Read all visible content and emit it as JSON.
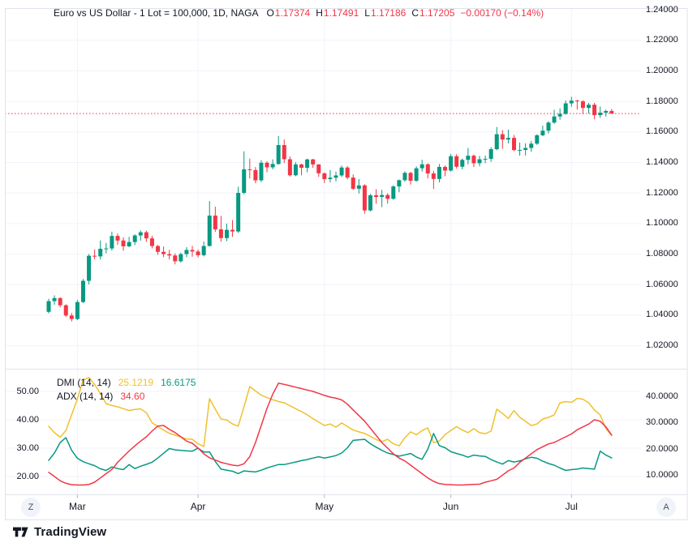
{
  "header": {
    "title": "Euro vs US Dollar - 1 Lot = 100,000, 1D, NAGA",
    "ohlc": {
      "o_label": "O",
      "o": "1.17374",
      "h_label": "H",
      "h": "1.17491",
      "l_label": "L",
      "l": "1.17186",
      "c_label": "C",
      "c": "1.17205",
      "change": "−0.00170 (−0.14%)"
    }
  },
  "indicator": {
    "dmi_label": "DMI (14, 14)",
    "plus_di_value": "25.1219",
    "minus_di_value": "16.6175",
    "adx_label": "ADX (14, 14)",
    "adx_value": "34.60"
  },
  "toolbar": {
    "z_label": "Z",
    "a_label": "A"
  },
  "footer": {
    "brand": "TradingView"
  },
  "colors": {
    "up": "#089981",
    "down": "#F23645",
    "plus_di": "#EFC12F",
    "minus_di": "#089981",
    "adx": "#F23645",
    "grid": "#F0F3FA",
    "border": "#E0E3EB",
    "text": "#131722",
    "muted": "#50535E",
    "last_price_line": "#F23645",
    "button_bg": "#F0F3FA"
  },
  "chart_data": [
    {
      "type": "candlestick",
      "title": "Euro vs US Dollar - 1 Lot = 100,000, 1D, NAGA",
      "timeframe": "1D",
      "broker": "NAGA",
      "ylim": [
        1.02,
        1.24
      ],
      "y_ticks": [
        1.24,
        1.22,
        1.2,
        1.18,
        1.16,
        1.14,
        1.12,
        1.1,
        1.08,
        1.06,
        1.04,
        1.02
      ],
      "y_tick_labels": [
        "1.24000",
        "1.22000",
        "1.20000",
        "1.18000",
        "1.16000",
        "1.14000",
        "1.12000",
        "1.10000",
        "1.08000",
        "1.06000",
        "1.04000",
        "1.02000"
      ],
      "x_ticks": [
        "Mar",
        "Apr",
        "May",
        "Jun",
        "Jul"
      ],
      "x_tick_indices": [
        5,
        26,
        48,
        70,
        91
      ],
      "last_price_line": 1.17205,
      "current": {
        "open": 1.17374,
        "high": 1.17491,
        "low": 1.17186,
        "close": 1.17205,
        "change": -0.0017,
        "change_pct": -0.14
      },
      "candles": [
        [
          1.0422,
          1.0508,
          1.0412,
          1.0492
        ],
        [
          1.0492,
          1.053,
          1.0468,
          1.0512
        ],
        [
          1.0512,
          1.0518,
          1.0452,
          1.0465
        ],
        [
          1.0465,
          1.0472,
          1.0388,
          1.0398
        ],
        [
          1.0398,
          1.0415,
          1.0359,
          1.0375
        ],
        [
          1.0375,
          1.05,
          1.0368,
          1.0486
        ],
        [
          1.0486,
          1.0637,
          1.048,
          1.0625
        ],
        [
          1.0625,
          1.08,
          1.0602,
          1.0789
        ],
        [
          1.0789,
          1.083,
          1.0766,
          1.0785
        ],
        [
          1.0785,
          1.0889,
          1.0765,
          1.0835
        ],
        [
          1.0835,
          1.0873,
          1.0805,
          1.0837
        ],
        [
          1.0837,
          1.0947,
          1.0823,
          1.0919
        ],
        [
          1.0919,
          1.0935,
          1.086,
          1.0889
        ],
        [
          1.0889,
          1.091,
          1.0822,
          1.0851
        ],
        [
          1.0851,
          1.0913,
          1.0845,
          1.0879
        ],
        [
          1.0879,
          1.093,
          1.0859,
          1.0922
        ],
        [
          1.0922,
          1.0955,
          1.0888,
          1.0943
        ],
        [
          1.0943,
          1.0954,
          1.088,
          1.0903
        ],
        [
          1.0903,
          1.092,
          1.0838,
          1.0853
        ],
        [
          1.0853,
          1.086,
          1.0796,
          1.0815
        ],
        [
          1.0815,
          1.085,
          1.078,
          1.08
        ],
        [
          1.08,
          1.0828,
          1.0765,
          1.0791
        ],
        [
          1.0791,
          1.0805,
          1.0733,
          1.0753
        ],
        [
          1.0753,
          1.081,
          1.0745,
          1.08
        ],
        [
          1.08,
          1.0845,
          1.078,
          1.0827
        ],
        [
          1.0827,
          1.0855,
          1.0783,
          1.0817
        ],
        [
          1.0817,
          1.083,
          1.0778,
          1.0793
        ],
        [
          1.0793,
          1.0882,
          1.0785,
          1.0853
        ],
        [
          1.0853,
          1.1147,
          1.085,
          1.1052
        ],
        [
          1.1052,
          1.111,
          1.0945,
          1.0962
        ],
        [
          1.0962,
          1.105,
          1.0882,
          1.0905
        ],
        [
          1.0905,
          1.1,
          1.0885,
          1.0959
        ],
        [
          1.0959,
          1.1023,
          1.0913,
          1.0948
        ],
        [
          1.0948,
          1.1241,
          1.0938,
          1.1201
        ],
        [
          1.1201,
          1.1473,
          1.1192,
          1.1355
        ],
        [
          1.1355,
          1.1425,
          1.1295,
          1.135
        ],
        [
          1.135,
          1.137,
          1.1264,
          1.1283
        ],
        [
          1.1283,
          1.1415,
          1.1272,
          1.1398
        ],
        [
          1.1398,
          1.1408,
          1.1336,
          1.1368
        ],
        [
          1.1368,
          1.142,
          1.1355,
          1.139
        ],
        [
          1.139,
          1.1573,
          1.1385,
          1.1514
        ],
        [
          1.1514,
          1.155,
          1.1396,
          1.1421
        ],
        [
          1.1421,
          1.1439,
          1.1308,
          1.1316
        ],
        [
          1.1316,
          1.1402,
          1.131,
          1.1387
        ],
        [
          1.1387,
          1.1392,
          1.1316,
          1.1365
        ],
        [
          1.1365,
          1.1425,
          1.1336,
          1.142
        ],
        [
          1.142,
          1.1424,
          1.1365,
          1.1387
        ],
        [
          1.1387,
          1.139,
          1.1306,
          1.1329
        ],
        [
          1.1329,
          1.1335,
          1.1265,
          1.1291
        ],
        [
          1.1291,
          1.135,
          1.127,
          1.13
        ],
        [
          1.13,
          1.134,
          1.1276,
          1.1315
        ],
        [
          1.1315,
          1.138,
          1.1305,
          1.1367
        ],
        [
          1.1367,
          1.1376,
          1.129,
          1.1301
        ],
        [
          1.1301,
          1.1322,
          1.122,
          1.1228
        ],
        [
          1.1228,
          1.1292,
          1.1197,
          1.125
        ],
        [
          1.125,
          1.1258,
          1.1065,
          1.1086
        ],
        [
          1.1086,
          1.1195,
          1.108,
          1.1185
        ],
        [
          1.1185,
          1.1225,
          1.113,
          1.1174
        ],
        [
          1.1174,
          1.1221,
          1.1108,
          1.1187
        ],
        [
          1.1187,
          1.1199,
          1.113,
          1.1162
        ],
        [
          1.1162,
          1.125,
          1.1156,
          1.1243
        ],
        [
          1.1243,
          1.1288,
          1.1205,
          1.1284
        ],
        [
          1.1284,
          1.1342,
          1.1274,
          1.1332
        ],
        [
          1.1332,
          1.1338,
          1.1255,
          1.128
        ],
        [
          1.128,
          1.1375,
          1.1274,
          1.1362
        ],
        [
          1.1362,
          1.1418,
          1.134,
          1.1388
        ],
        [
          1.1388,
          1.1395,
          1.1296,
          1.1328
        ],
        [
          1.1328,
          1.1345,
          1.1227,
          1.1292
        ],
        [
          1.1292,
          1.139,
          1.127,
          1.1371
        ],
        [
          1.1371,
          1.138,
          1.131,
          1.1347
        ],
        [
          1.1347,
          1.1455,
          1.134,
          1.1441
        ],
        [
          1.1441,
          1.1454,
          1.136,
          1.1372
        ],
        [
          1.1372,
          1.1426,
          1.1355,
          1.1417
        ],
        [
          1.1417,
          1.1495,
          1.1388,
          1.1444
        ],
        [
          1.1444,
          1.1452,
          1.137,
          1.1395
        ],
        [
          1.1395,
          1.1443,
          1.1375,
          1.1421
        ],
        [
          1.1421,
          1.1445,
          1.1395,
          1.1424
        ],
        [
          1.1424,
          1.15,
          1.1405,
          1.1487
        ],
        [
          1.1487,
          1.1632,
          1.148,
          1.1585
        ],
        [
          1.1585,
          1.1612,
          1.149,
          1.155
        ],
        [
          1.155,
          1.1615,
          1.1525,
          1.1561
        ],
        [
          1.1561,
          1.158,
          1.1473,
          1.1481
        ],
        [
          1.1481,
          1.153,
          1.1445,
          1.1482
        ],
        [
          1.1482,
          1.1525,
          1.1446,
          1.1495
        ],
        [
          1.1495,
          1.154,
          1.147,
          1.1523
        ],
        [
          1.1523,
          1.1585,
          1.1515,
          1.1578
        ],
        [
          1.1578,
          1.1641,
          1.1572,
          1.1608
        ],
        [
          1.1608,
          1.167,
          1.159,
          1.1661
        ],
        [
          1.1661,
          1.1745,
          1.1653,
          1.1701
        ],
        [
          1.1701,
          1.1754,
          1.168,
          1.1718
        ],
        [
          1.1718,
          1.1806,
          1.1713,
          1.1787
        ],
        [
          1.1787,
          1.183,
          1.1765,
          1.1805
        ],
        [
          1.1805,
          1.181,
          1.1746,
          1.18
        ],
        [
          1.18,
          1.1808,
          1.1716,
          1.1757
        ],
        [
          1.1757,
          1.179,
          1.172,
          1.1778
        ],
        [
          1.1778,
          1.179,
          1.1682,
          1.171
        ],
        [
          1.171,
          1.1766,
          1.1692,
          1.1726
        ],
        [
          1.1726,
          1.1745,
          1.17,
          1.1737
        ],
        [
          1.17374,
          1.17491,
          1.17186,
          1.17205
        ]
      ]
    },
    {
      "type": "line",
      "title": "DMI (14, 14) with ADX (14, 14)",
      "left_ticks": [
        50,
        40,
        30,
        20
      ],
      "left_tick_labels": [
        "50.00",
        "40.00",
        "30.00",
        "20.00"
      ],
      "right_ticks": [
        40,
        30,
        20,
        10
      ],
      "right_tick_labels": [
        "40.0000",
        "30.0000",
        "20.0000",
        "10.0000"
      ],
      "series": [
        {
          "name": "+DI",
          "scale": "right",
          "last_value": 25.1219,
          "values": [
            28.6,
            26.2,
            24.5,
            27.0,
            33.0,
            39.0,
            46.2,
            47.1,
            44.5,
            41.0,
            37.2,
            36.5,
            36.0,
            35.3,
            34.6,
            35.0,
            35.2,
            33.8,
            30.0,
            28.5,
            27.2,
            25.9,
            25.3,
            24.6,
            23.8,
            23.7,
            22.0,
            21.0,
            39.1,
            35.1,
            31.4,
            31.0,
            29.5,
            28.7,
            36.0,
            43.7,
            42.0,
            40.4,
            39.5,
            38.7,
            38.0,
            37.5,
            36.4,
            35.3,
            34.2,
            33.0,
            31.5,
            30.2,
            28.9,
            29.5,
            28.3,
            29.9,
            28.5,
            27.2,
            26.5,
            25.9,
            24.8,
            23.6,
            22.8,
            23.7,
            22.0,
            21.2,
            24.3,
            26.5,
            25.4,
            27.0,
            28.0,
            22.4,
            23.0,
            25.5,
            27.0,
            28.5,
            27.2,
            26.2,
            27.7,
            26.2,
            25.8,
            26.8,
            35.1,
            33.5,
            31.6,
            34.6,
            32.0,
            30.5,
            28.9,
            29.5,
            31.4,
            32.0,
            32.9,
            37.5,
            38.0,
            37.7,
            39.2,
            38.9,
            37.5,
            34.8,
            32.9,
            27.7,
            25.12
          ]
        },
        {
          "name": "-DI",
          "scale": "right",
          "last_value": 16.6175,
          "values": [
            15.7,
            18.5,
            22.5,
            24.3,
            19.5,
            16.5,
            15.2,
            14.4,
            13.7,
            12.5,
            11.9,
            13.2,
            12.6,
            12.2,
            14.1,
            12.6,
            13.5,
            14.2,
            15.0,
            16.6,
            18.4,
            20.2,
            19.7,
            19.5,
            19.3,
            19.2,
            20.3,
            18.9,
            18.9,
            15.3,
            12.4,
            12.0,
            11.6,
            10.7,
            11.7,
            11.5,
            11.3,
            12.0,
            12.8,
            13.5,
            14.1,
            14.1,
            14.6,
            15.1,
            15.6,
            16.0,
            16.6,
            17.1,
            16.6,
            17.0,
            17.5,
            18.5,
            20.5,
            23.3,
            23.5,
            23.7,
            22.0,
            20.7,
            19.5,
            18.5,
            17.9,
            17.3,
            17.8,
            18.3,
            17.0,
            16.1,
            20.0,
            25.9,
            21.3,
            20.5,
            19.0,
            18.3,
            17.7,
            16.9,
            17.7,
            17.4,
            17.2,
            16.0,
            15.1,
            14.3,
            15.6,
            15.1,
            15.5,
            16.3,
            16.9,
            16.5,
            15.4,
            14.5,
            13.9,
            12.8,
            11.9,
            12.2,
            12.4,
            12.8,
            12.6,
            12.4,
            19.2,
            17.7,
            16.62
          ]
        },
        {
          "name": "ADX",
          "scale": "left",
          "last_value": 34.6,
          "values": [
            21.5,
            20.0,
            18.5,
            17.6,
            17.1,
            17.0,
            17.0,
            17.2,
            18.0,
            19.5,
            21.0,
            22.5,
            25.0,
            27.0,
            29.0,
            30.8,
            32.5,
            34.0,
            36.0,
            37.8,
            38.0,
            36.6,
            35.5,
            34.0,
            32.5,
            31.7,
            30.0,
            28.0,
            26.6,
            25.8,
            25.0,
            24.5,
            24.0,
            23.8,
            24.5,
            27.0,
            32.0,
            38.0,
            44.0,
            49.0,
            52.9,
            52.5,
            52.0,
            51.5,
            51.0,
            50.5,
            50.0,
            49.3,
            48.6,
            48.0,
            47.6,
            47.0,
            45.5,
            43.5,
            41.5,
            39.5,
            37.0,
            34.5,
            32.0,
            30.0,
            28.0,
            26.5,
            25.5,
            24.0,
            22.5,
            21.0,
            19.5,
            18.3,
            17.5,
            17.2,
            17.1,
            17.0,
            17.0,
            17.1,
            17.2,
            17.3,
            18.0,
            18.5,
            19.0,
            20.5,
            22.0,
            23.0,
            25.0,
            26.5,
            28.0,
            29.5,
            30.5,
            31.5,
            32.0,
            33.0,
            34.0,
            35.0,
            36.5,
            37.5,
            38.5,
            40.0,
            39.5,
            37.5,
            34.6
          ]
        }
      ]
    }
  ]
}
